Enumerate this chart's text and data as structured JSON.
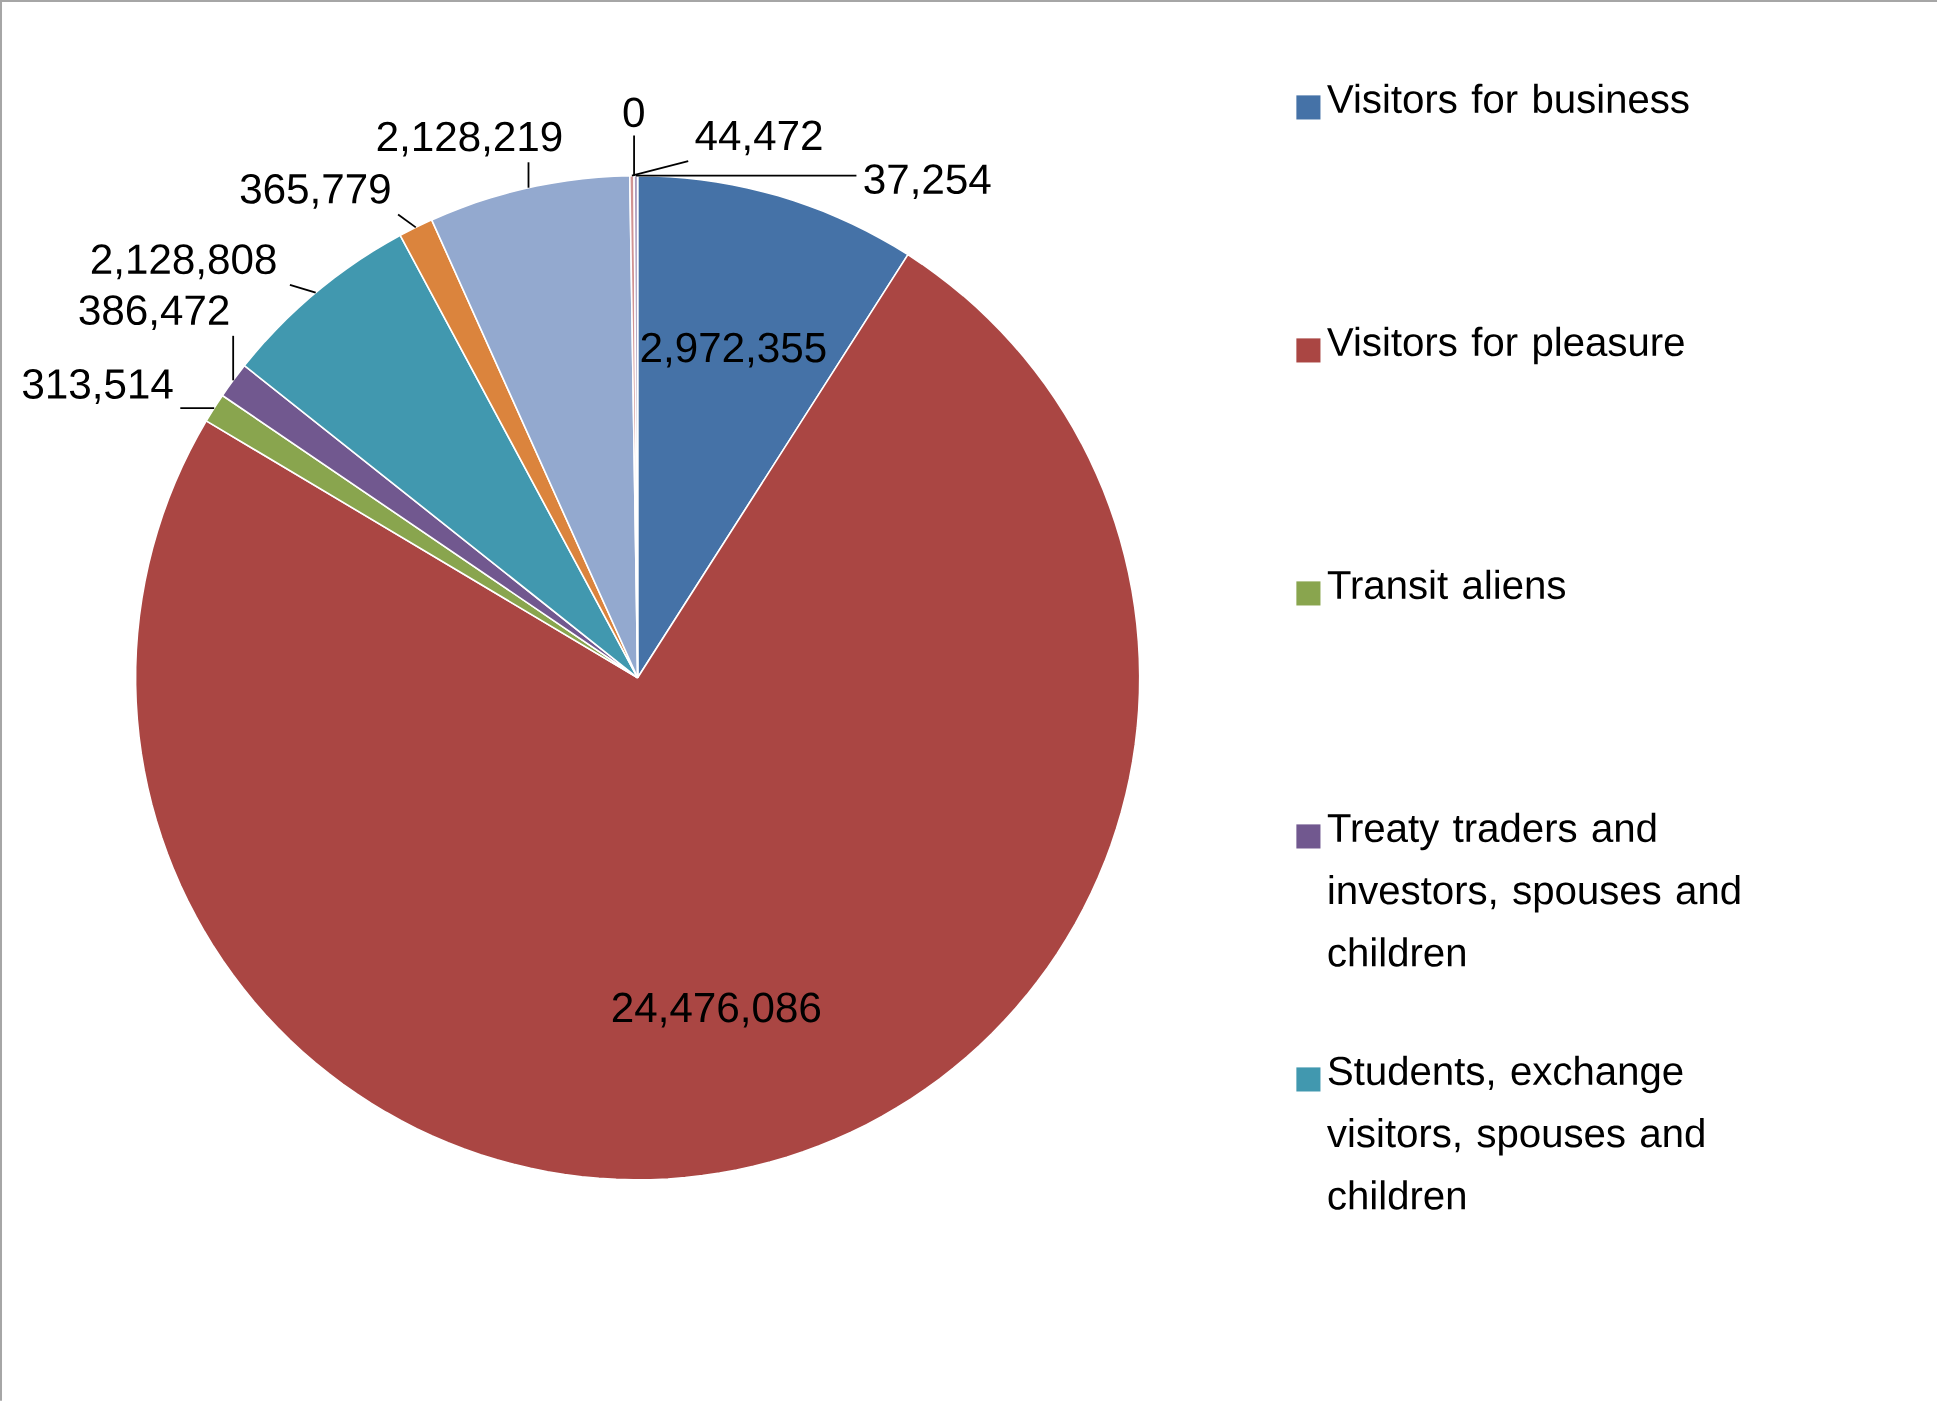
{
  "chart_data": {
    "type": "pie",
    "legend": "right",
    "value_labels": [
      "2,972,355",
      "24,476,086",
      "313,514",
      "386,472",
      "2,128,808",
      "365,779",
      "2,128,219",
      "44,472",
      "0",
      "37,254"
    ],
    "categories": [
      "Visitors for business",
      "Visitors for pleasure",
      "Transit aliens",
      "Treaty traders and investors, spouses and children",
      "Students, exchange visitors, spouses and children",
      null,
      null,
      null,
      null,
      null
    ],
    "values": [
      2972355,
      24476086,
      313514,
      386472,
      2128808,
      365779,
      2128219,
      44472,
      0,
      37254
    ],
    "colors": [
      "#4572a7",
      "#aa4643",
      "#89a54e",
      "#71588f",
      "#4198af",
      "#db843d",
      "#93a9cf",
      "#d19392",
      "#b9cd96",
      "#a99bbd"
    ]
  }
}
